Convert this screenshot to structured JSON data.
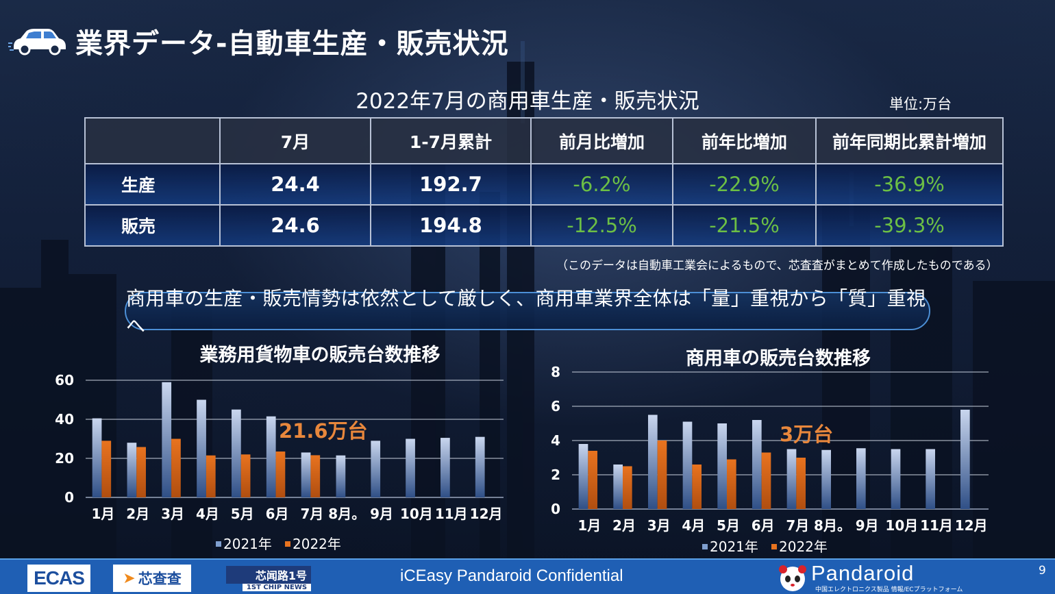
{
  "page": {
    "title": "業界データ-自動車生産・販売状況",
    "page_number": "9"
  },
  "table": {
    "title": "2022年7月の商用車生産・販売状況",
    "unit": "単位:万台",
    "headers": [
      "",
      "7月",
      "1-7月累計",
      "前月比増加",
      "前年比増加",
      "前年同期比累計増加"
    ],
    "rows": [
      {
        "label": "生産",
        "month": "24.4",
        "cumulative": "192.7",
        "mom": "-6.2%",
        "yoy": "-22.9%",
        "yoy_cum": "-36.9%"
      },
      {
        "label": "販売",
        "month": "24.6",
        "cumulative": "194.8",
        "mom": "-12.5%",
        "yoy": "-21.5%",
        "yoy_cum": "-39.3%"
      }
    ],
    "note": "（このデータは自動車工業会によるもので、芯査査がまとめて作成したものである）"
  },
  "banner": {
    "text": "商用車の生産・販売情勢は依然として厳しく、商用車業界全体は「量」重視から「質」重視へ"
  },
  "colors": {
    "series_2021": "#7f9fd0",
    "series_2022": "#e8731f",
    "accent_orange": "#e8873c",
    "positive_green": "#6cbf45",
    "footer_blue": "#1f5fb4"
  },
  "chart_data": [
    {
      "type": "bar",
      "title": "業務用貨物車の販売台数推移",
      "categories": [
        "1月",
        "2月",
        "3月",
        "4月",
        "5月",
        "6月",
        "7月",
        "8月。",
        "9月",
        "10月",
        "11月",
        "12月"
      ],
      "series": [
        {
          "name": "2021年",
          "values": [
            40.5,
            28,
            59,
            50,
            45,
            41.5,
            23,
            21.5,
            29,
            30,
            30.5,
            31
          ]
        },
        {
          "name": "2022年",
          "values": [
            29,
            25.8,
            30,
            21.5,
            22,
            23.5,
            21.6,
            null,
            null,
            null,
            null,
            null
          ]
        }
      ],
      "yticks": [
        "0",
        "20",
        "40",
        "60"
      ],
      "ylim": [
        0,
        60
      ],
      "annotation": "21.6万台",
      "legend": "bottom"
    },
    {
      "type": "bar",
      "title": "商用車の販売台数推移",
      "categories": [
        "1月",
        "2月",
        "3月",
        "4月",
        "5月",
        "6月",
        "7月",
        "8月。",
        "9月",
        "10月",
        "11月",
        "12月"
      ],
      "series": [
        {
          "name": "2021年",
          "values": [
            3.8,
            2.6,
            5.5,
            5.1,
            5.0,
            5.2,
            3.5,
            3.45,
            3.55,
            3.5,
            3.5,
            5.8
          ]
        },
        {
          "name": "2022年",
          "values": [
            3.4,
            2.5,
            4.0,
            2.6,
            2.9,
            3.3,
            3.0,
            null,
            null,
            null,
            null,
            null
          ]
        }
      ],
      "yticks": [
        "0",
        "2",
        "4",
        "6",
        "8"
      ],
      "ylim": [
        0,
        8
      ],
      "annotation": "3万台",
      "legend": "bottom"
    }
  ],
  "footer": {
    "logo_ecas": "ECAS",
    "logo_xincc": "芯查查",
    "logo_news_top": "芯闻路1号",
    "logo_news_bottom": "1ST CHIP NEWS",
    "confidential": "iCEasy  Pandaroid Confidential",
    "brand": "Pandaroid",
    "brand_sub": "中国エレクトロニクス製品  情報/ECプラットフォーム"
  }
}
